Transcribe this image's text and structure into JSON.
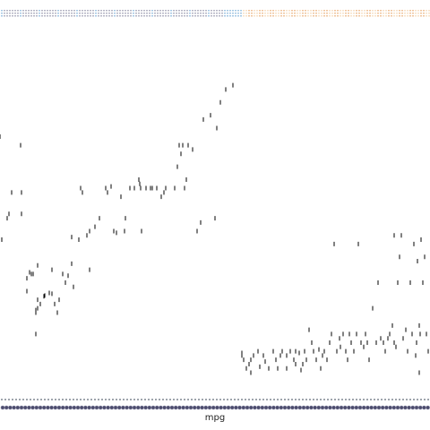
{
  "chart_data": {
    "type": "scatter",
    "title": "",
    "xlabel": "mpg",
    "ylabel": "",
    "grid": false,
    "legend": "none",
    "xlim": [
      0,
      48
    ],
    "ylim": [
      0,
      43
    ],
    "series": [
      {
        "color": "#000000",
        "points": [
          [
            0.0,
            30.0
          ],
          [
            0.2,
            18.0
          ],
          [
            0.8,
            20.5
          ],
          [
            1.0,
            21.0
          ],
          [
            1.3,
            23.5
          ],
          [
            2.3,
            29.0
          ],
          [
            2.4,
            21.0
          ],
          [
            2.4,
            23.5
          ],
          [
            3.0,
            12.0
          ],
          [
            3.0,
            13.5
          ],
          [
            3.3,
            14.2
          ],
          [
            3.5,
            14.0
          ],
          [
            3.7,
            14.0
          ],
          [
            4.0,
            7.0
          ],
          [
            4.0,
            9.5
          ],
          [
            4.0,
            9.8
          ],
          [
            4.2,
            10.0
          ],
          [
            4.2,
            11.0
          ],
          [
            4.2,
            15.0
          ],
          [
            4.5,
            10.5
          ],
          [
            4.9,
            11.4
          ],
          [
            5.0,
            11.5
          ],
          [
            5.5,
            11.8
          ],
          [
            5.8,
            11.7
          ],
          [
            5.8,
            14.5
          ],
          [
            6.1,
            10.5
          ],
          [
            6.4,
            9.5
          ],
          [
            6.6,
            11.0
          ],
          [
            7.0,
            14.0
          ],
          [
            7.3,
            13.0
          ],
          [
            7.6,
            13.8
          ],
          [
            8.0,
            15.2
          ],
          [
            8.0,
            18.3
          ],
          [
            8.2,
            12.5
          ],
          [
            8.8,
            18.0
          ],
          [
            9.0,
            24.0
          ],
          [
            9.2,
            23.5
          ],
          [
            9.7,
            18.5
          ],
          [
            10.0,
            14.5
          ],
          [
            10.0,
            19.0
          ],
          [
            10.6,
            19.5
          ],
          [
            11.1,
            20.5
          ],
          [
            11.8,
            24.0
          ],
          [
            12.0,
            23.5
          ],
          [
            12.4,
            24.2
          ],
          [
            12.7,
            19.0
          ],
          [
            13.0,
            18.8
          ],
          [
            13.5,
            23.0
          ],
          [
            13.9,
            19.0
          ],
          [
            14.0,
            20.5
          ],
          [
            14.5,
            24.0
          ],
          [
            15.0,
            24.0
          ],
          [
            15.5,
            25.0
          ],
          [
            15.6,
            24.5
          ],
          [
            15.7,
            24.0
          ],
          [
            15.8,
            19.0
          ],
          [
            16.3,
            24.0
          ],
          [
            16.8,
            24.0
          ],
          [
            17.0,
            24.0
          ],
          [
            17.5,
            24.0
          ],
          [
            18.0,
            23.0
          ],
          [
            18.3,
            23.5
          ],
          [
            18.5,
            24.0
          ],
          [
            19.5,
            24.0
          ],
          [
            19.8,
            26.5
          ],
          [
            20.0,
            29.0
          ],
          [
            20.2,
            28.0
          ],
          [
            20.4,
            29.0
          ],
          [
            20.6,
            24.0
          ],
          [
            20.8,
            25.0
          ],
          [
            21.0,
            29.0
          ],
          [
            21.5,
            28.5
          ],
          [
            22.0,
            19.0
          ],
          [
            22.4,
            20.0
          ],
          [
            22.7,
            32.0
          ],
          [
            23.5,
            32.5
          ],
          [
            24.0,
            20.5
          ],
          [
            24.2,
            31.0
          ],
          [
            24.6,
            34.0
          ],
          [
            25.2,
            35.5
          ],
          [
            26.0,
            36.0
          ],
          [
            27.0,
            4.5
          ],
          [
            27.0,
            4.8
          ],
          [
            27.2,
            4.0
          ],
          [
            27.5,
            3.0
          ],
          [
            27.8,
            3.5
          ],
          [
            28.0,
            4.0
          ],
          [
            28.0,
            2.5
          ],
          [
            28.3,
            4.5
          ],
          [
            28.8,
            5.0
          ],
          [
            29.0,
            3.2
          ],
          [
            29.4,
            4.5
          ],
          [
            29.6,
            3.8
          ],
          [
            30.0,
            3.0
          ],
          [
            30.5,
            5.0
          ],
          [
            30.8,
            4.0
          ],
          [
            31.0,
            3.0
          ],
          [
            31.3,
            4.5
          ],
          [
            31.5,
            5.0
          ],
          [
            32.0,
            3.0
          ],
          [
            32.0,
            4.5
          ],
          [
            32.4,
            5.0
          ],
          [
            32.8,
            4.0
          ],
          [
            33.0,
            3.5
          ],
          [
            33.0,
            5.0
          ],
          [
            33.4,
            4.8
          ],
          [
            33.6,
            2.8
          ],
          [
            33.8,
            3.5
          ],
          [
            34.0,
            5.0
          ],
          [
            34.2,
            4.0
          ],
          [
            34.5,
            7.5
          ],
          [
            34.8,
            6.0
          ],
          [
            35.0,
            5.0
          ],
          [
            35.3,
            4.0
          ],
          [
            35.6,
            5.2
          ],
          [
            35.8,
            3.0
          ],
          [
            36.0,
            4.5
          ],
          [
            36.2,
            5.0
          ],
          [
            36.5,
            4.0
          ],
          [
            36.8,
            6.0
          ],
          [
            37.0,
            7.0
          ],
          [
            37.3,
            17.5
          ],
          [
            37.6,
            5.0
          ],
          [
            37.9,
            6.5
          ],
          [
            38.0,
            5.5
          ],
          [
            38.3,
            7.0
          ],
          [
            38.6,
            5.0
          ],
          [
            38.8,
            4.0
          ],
          [
            39.0,
            7.0
          ],
          [
            39.2,
            6.0
          ],
          [
            39.5,
            5.0
          ],
          [
            39.8,
            7.0
          ],
          [
            40.0,
            17.5
          ],
          [
            40.3,
            6.0
          ],
          [
            40.6,
            5.5
          ],
          [
            40.8,
            7.0
          ],
          [
            41.0,
            6.0
          ],
          [
            41.2,
            4.0
          ],
          [
            41.6,
            10.0
          ],
          [
            42.0,
            6.0
          ],
          [
            42.2,
            13.0
          ],
          [
            42.5,
            6.5
          ],
          [
            42.8,
            6.0
          ],
          [
            43.0,
            5.0
          ],
          [
            43.3,
            6.5
          ],
          [
            43.5,
            7.0
          ],
          [
            43.8,
            8.0
          ],
          [
            44.0,
            6.0
          ],
          [
            44.2,
            5.5
          ],
          [
            44.4,
            13.0
          ],
          [
            44.6,
            16.0
          ],
          [
            44.8,
            18.5
          ],
          [
            45.0,
            6.5
          ],
          [
            45.3,
            7.5
          ],
          [
            45.5,
            5.0
          ],
          [
            45.8,
            13.0
          ],
          [
            46.0,
            7.0
          ],
          [
            46.2,
            17.5
          ],
          [
            46.5,
            6.0
          ],
          [
            46.8,
            8.0
          ],
          [
            47.0,
            18.0
          ],
          [
            47.2,
            13.0
          ],
          [
            47.4,
            16.0
          ],
          [
            47.6,
            7.0
          ],
          [
            47.8,
            5.0
          ],
          [
            46.8,
            2.5
          ],
          [
            46.6,
            15.5
          ],
          [
            46.9,
            7.0
          ],
          [
            44.0,
            18.5
          ],
          [
            46.4,
            4.5
          ]
        ]
      }
    ]
  }
}
